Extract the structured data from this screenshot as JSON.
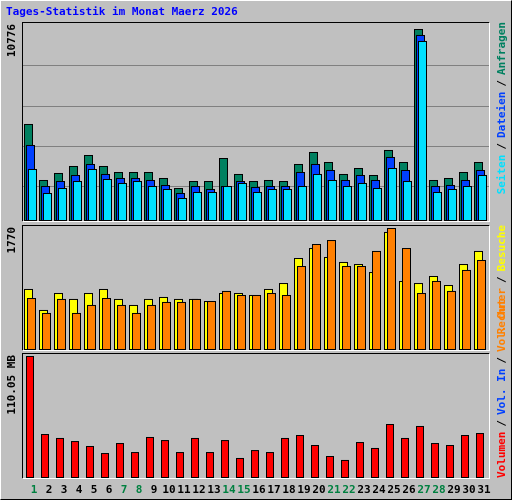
{
  "chart_data": {
    "type": "bar",
    "title": "Tages-Statistik im Monat Maerz 2026",
    "title_color": "#0000ff",
    "categories": [
      1,
      2,
      3,
      4,
      5,
      6,
      7,
      8,
      9,
      10,
      11,
      12,
      13,
      14,
      15,
      16,
      17,
      18,
      19,
      20,
      21,
      22,
      23,
      24,
      25,
      26,
      27,
      28,
      29,
      30,
      31
    ],
    "highlighted_categories": [
      0,
      6,
      7,
      13,
      14,
      20,
      21,
      26,
      27
    ],
    "highlight_color": "#008040",
    "legend_separator": "/",
    "panels": [
      {
        "ylim": [
          0,
          10776
        ],
        "yticks": [
          10776
        ],
        "series": [
          {
            "name": "Anfragen",
            "color": "#008060",
            "values": [
              5417,
              2257,
              2652,
              3047,
              3667,
              3047,
              2708,
              2708,
              2708,
              2370,
              1805,
              2200,
              2200,
              3498,
              2596,
              2200,
              2257,
              2200,
              3160,
              3837,
              3272,
              2596,
              2934,
              2539,
              3950,
              3272,
              10776,
              2257,
              2370,
              2708,
              3272
            ]
          },
          {
            "name": "Dateien",
            "color": "#0040ff",
            "values": [
              4232,
              1918,
              2200,
              2539,
              3160,
              2596,
              2370,
              2370,
              2257,
              1975,
              1523,
              1918,
              1749,
              1918,
              2200,
              1862,
              1918,
              1918,
              2708,
              3160,
              2821,
              2257,
              2539,
              2257,
              3555,
              2821,
              10438,
              1918,
              1975,
              2257,
              2821
            ]
          },
          {
            "name": "Seiten",
            "color": "#00e0ff",
            "values": [
              2878,
              1523,
              1805,
              2200,
              2878,
              2313,
              2088,
              2200,
              1918,
              1749,
              1241,
              1580,
              1580,
              1918,
              2088,
              1580,
              1749,
              1749,
              1918,
              2596,
              2257,
              1918,
              2088,
              1805,
              2934,
              2200,
              10100,
              1580,
              1749,
              1918,
              2539
            ]
          }
        ]
      },
      {
        "ylim": [
          0,
          1770
        ],
        "yticks": [
          1770
        ],
        "series": [
          {
            "name": "Besuche",
            "color": "#ffff00",
            "values": [
              878,
              571,
              819,
              732,
              819,
              878,
              732,
              644,
              732,
              761,
              732,
              732,
              702,
              819,
              819,
              790,
              878,
              965,
              1331,
              1477,
              1346,
              1273,
              1243,
              1126,
              1712,
              995,
              965,
              1068,
              936,
              1243,
              1434
            ]
          },
          {
            "name": "Rechner",
            "color": "#ff8000",
            "values": [
              746,
              527,
              732,
              527,
              644,
              746,
              644,
              527,
              644,
              688,
              688,
              732,
              702,
              849,
              790,
              790,
              819,
              790,
              1214,
              1536,
              1594,
              1214,
              1214,
              1434,
              1770,
              1477,
              819,
              995,
              849,
              1156,
              1302
            ]
          }
        ]
      },
      {
        "ylim": [
          0,
          110.05
        ],
        "yticks": [
          {
            "value": 110.05,
            "label": "110.05 MB"
          }
        ],
        "series": [
          {
            "name": "Volumen",
            "color": "#ff0000",
            "values": [
              110.05,
              39.1,
              35.5,
              32.7,
              28.2,
              21.8,
              30.9,
              22.7,
              36.4,
              33.6,
              22.7,
              35.5,
              22.7,
              33.6,
              17.3,
              24.5,
              22.7,
              35.5,
              38.2,
              29.1,
              19.1,
              15.5,
              31.8,
              26.4,
              48.2,
              35.5,
              46.4,
              30.9,
              29.1,
              38.2,
              40.0
            ]
          }
        ],
        "legend_extra": [
          {
            "name": "Vol. In",
            "color": "#0040ff"
          },
          {
            "name": "Vol. Out",
            "color": "#ff8000"
          }
        ]
      }
    ]
  }
}
